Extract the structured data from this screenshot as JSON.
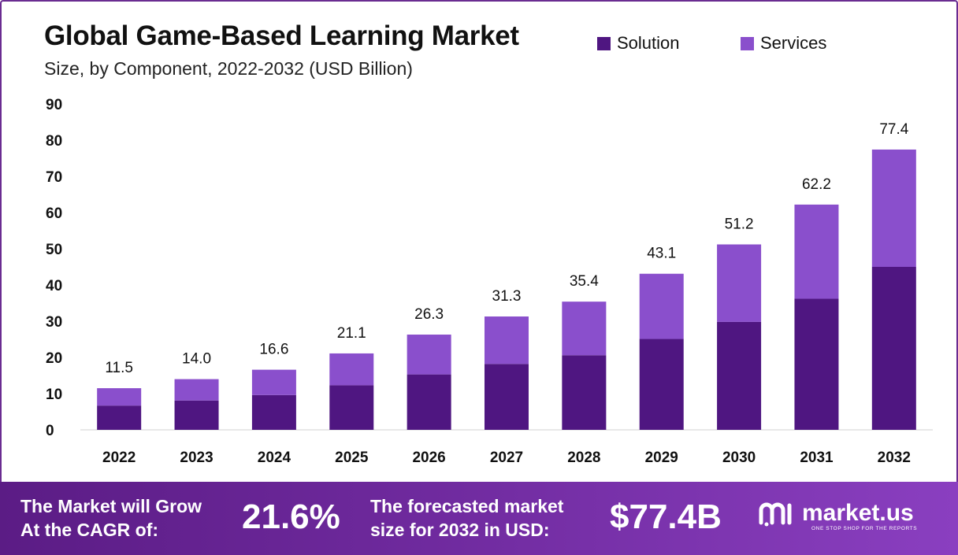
{
  "chart_data": {
    "type": "bar",
    "stacked": true,
    "title": "Global Game-Based Learning Market",
    "subtitle": "Size, by Component, 2022-2032 (USD Billion)",
    "categories": [
      "2022",
      "2023",
      "2024",
      "2025",
      "2026",
      "2027",
      "2028",
      "2029",
      "2030",
      "2031",
      "2032"
    ],
    "series": [
      {
        "name": "Solution",
        "color": "#4f1681",
        "values": [
          6.7,
          8.1,
          9.6,
          12.3,
          15.3,
          18.2,
          20.6,
          25.1,
          29.8,
          36.2,
          45.0
        ]
      },
      {
        "name": "Services",
        "color": "#8a4fcc",
        "values": [
          4.8,
          5.9,
          7.0,
          8.8,
          11.0,
          13.1,
          14.8,
          18.0,
          21.4,
          26.0,
          32.4
        ]
      }
    ],
    "totals": [
      "11.5",
      "14.0",
      "16.6",
      "21.1",
      "26.3",
      "31.3",
      "35.4",
      "43.1",
      "51.2",
      "62.2",
      "77.4"
    ],
    "yticks": [
      0,
      10,
      20,
      30,
      40,
      50,
      60,
      70,
      80,
      90
    ],
    "ylim": [
      0,
      90
    ],
    "grid": false,
    "legend_position": "top-right"
  },
  "footer": {
    "cagr_label_line1": "The Market will Grow",
    "cagr_label_line2": "At the CAGR of:",
    "cagr_value": "21.6%",
    "forecast_label_line1": "The forecasted market",
    "forecast_label_line2": "size for 2032 in USD:",
    "forecast_value": "$77.4B",
    "brand_name": "market.us",
    "brand_tagline": "ONE STOP SHOP FOR THE REPORTS",
    "background_color": "#6a2c91"
  }
}
